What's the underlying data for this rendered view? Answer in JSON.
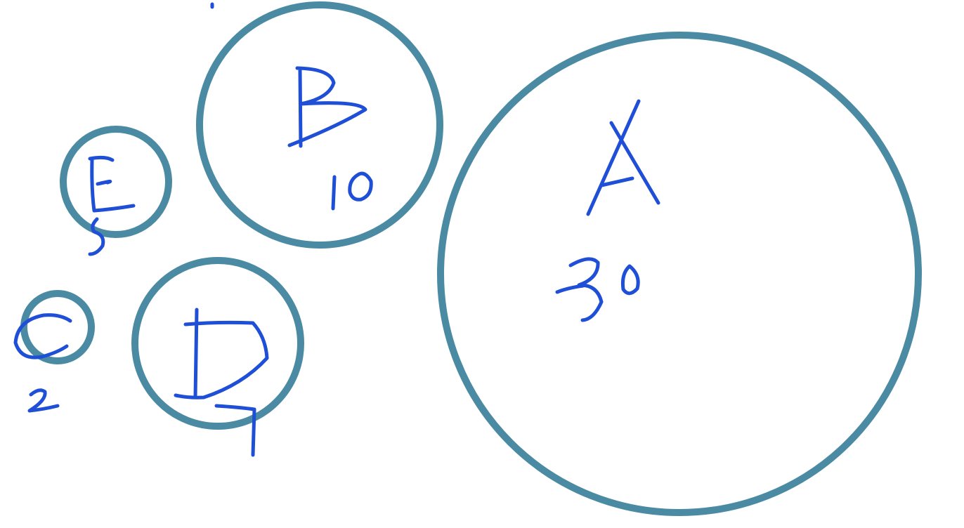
{
  "diagram": {
    "colors": {
      "circle_stroke": "#4a8aa3",
      "handwriting": "#1f4fd6",
      "background": "#ffffff"
    },
    "circles": [
      {
        "id": "A",
        "label": "A",
        "value": "30"
      },
      {
        "id": "B",
        "label": "B",
        "value": "10"
      },
      {
        "id": "E",
        "label": "E",
        "value": "5"
      },
      {
        "id": "C",
        "label": "C",
        "value": "2"
      },
      {
        "id": "D",
        "label": "D",
        "value": "7"
      }
    ]
  }
}
